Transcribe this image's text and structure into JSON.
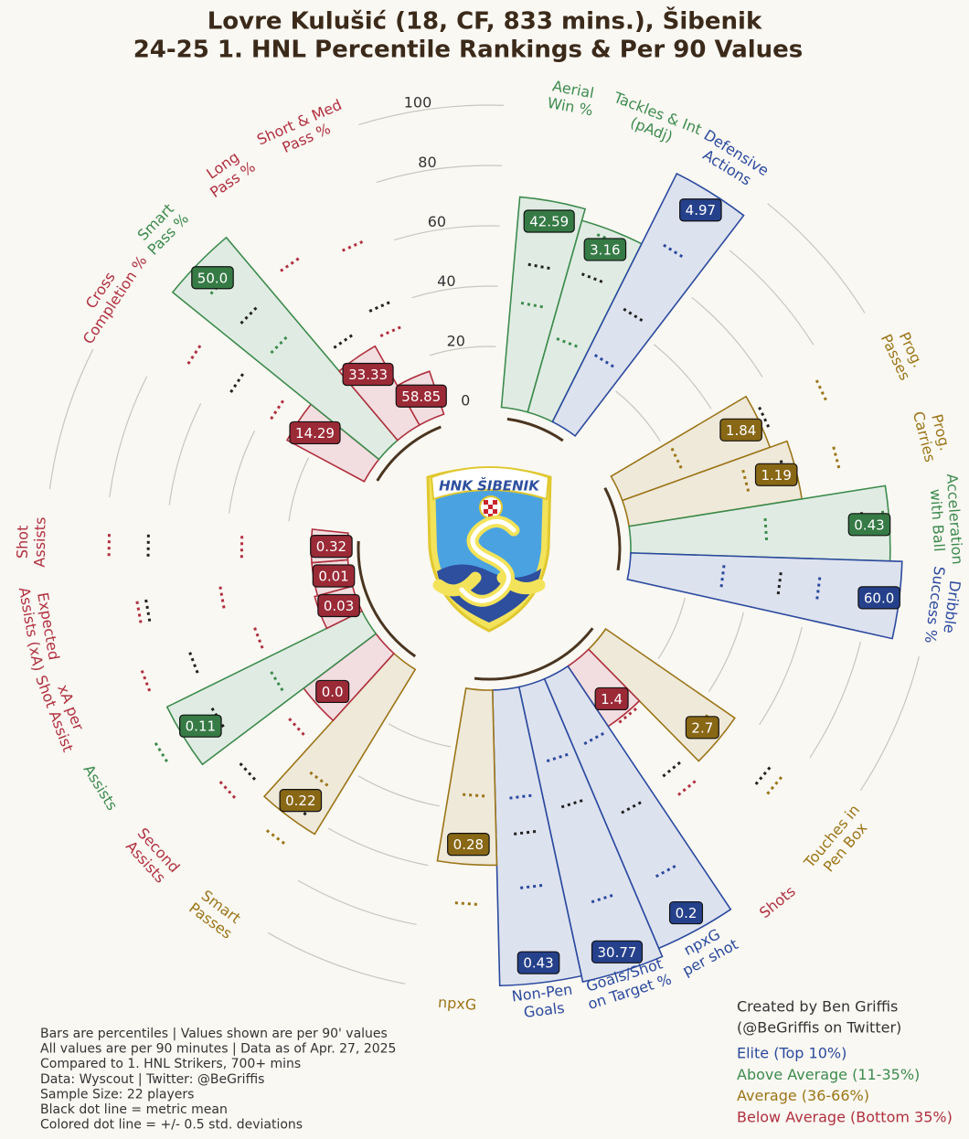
{
  "chart_data": {
    "type": "pizza",
    "title": [
      "Lovre Kulušić (18, CF, 833 mins.), Šibenik",
      "24-25 1. HNL Percentile Rankings & Per 90 Values"
    ],
    "rlim": [
      0,
      100
    ],
    "rticks": [
      0,
      20,
      40,
      60,
      80,
      100
    ],
    "logo_text": "HNK ŠIBENIK",
    "groups": [
      {
        "metrics": [
          {
            "label": [
              "Aerial",
              "Win %"
            ],
            "percentile": 70,
            "value": 42.59,
            "color": "#3d8b4e",
            "mean": 48,
            "band": [
              35,
              63
            ]
          },
          {
            "label": [
              "Tackles & Int",
              "(pAdj)"
            ],
            "percentile": 66,
            "value": 3.16,
            "color": "#3d8b4e",
            "mean": 49,
            "band": [
              26,
              63
            ]
          },
          {
            "label": [
              "Defensive",
              "Actions"
            ],
            "percentile": 92,
            "value": 4.97,
            "color": "#2b4a9e",
            "mean": 44,
            "band": [
              26,
              69
            ]
          }
        ]
      },
      {
        "metrics": [
          {
            "label": [
              "Prog.",
              "Passes"
            ],
            "percentile": 52,
            "value": 1.84,
            "color": "#9b7518",
            "mean": 54,
            "band": [
              22,
              75
            ]
          },
          {
            "label": [
              "Prog.",
              "Carries"
            ],
            "percentile": 58,
            "value": 1.19,
            "color": "#9b7518",
            "mean": 54,
            "band": [
              41,
              72
            ]
          },
          {
            "label": [
              "Acceleration",
              "with Ball"
            ],
            "percentile": 86,
            "value": 0.43,
            "color": "#3d8b4e",
            "mean": 77,
            "band": [
              45,
              84
            ]
          },
          {
            "label": [
              "Dribble",
              "Success %"
            ],
            "percentile": 90,
            "value": 60,
            "value_label": "60.0",
            "color": "#2b4a9e",
            "mean": 50,
            "band": [
              31,
              63
            ]
          }
        ]
      },
      {
        "metrics": [
          {
            "label": [
              "Touches in",
              "Pen Box"
            ],
            "percentile": 52,
            "value": 2.7,
            "color": "#9b7518",
            "mean": 71,
            "band": [
              44,
              76
            ]
          },
          {
            "label": [
              "Shots"
            ],
            "percentile": 24,
            "value": 1.4,
            "color": "#b0303f",
            "mean": 48,
            "band": [
              25,
              56
            ]
          },
          {
            "label": [
              "npxG",
              "per shot"
            ],
            "percentile": 97,
            "value": 0.2,
            "color": "#2b4a9e",
            "mean": 51,
            "band": [
              25,
              75
            ]
          },
          {
            "label": [
              "Goals/Shot",
              "on Target %"
            ],
            "percentile": 100,
            "value": 30.77,
            "color": "#2b4a9e",
            "mean": 42,
            "band": [
              26,
              75
            ]
          },
          {
            "label": [
              "Non-Pen",
              "Goals"
            ],
            "percentile": 98,
            "value": 0.43,
            "color": "#2b4a9e",
            "mean": 48,
            "band": [
              36,
              66
            ]
          },
          {
            "label": [
              "npxG"
            ],
            "percentile": 58,
            "value": 0.28,
            "color": "#9b7518",
            "mean": 49,
            "band": [
              35,
              71
            ]
          }
        ]
      },
      {
        "metrics": [
          {
            "label": [
              "Smart",
              "Passes"
            ],
            "percentile": 64,
            "value": 0.22,
            "color": "#9b7518",
            "mean": 60,
            "band": [
              48,
              72
            ]
          },
          {
            "label": [
              "Second",
              "Assists"
            ],
            "percentile": 30,
            "value": 0,
            "value_label": "0.0",
            "color": "#b0303f",
            "mean": 62,
            "band": [
              40,
              71
            ]
          },
          {
            "label": [
              "Assists"
            ],
            "percentile": 72,
            "value": 0.11,
            "color": "#3d8b4e",
            "mean": 59,
            "band": [
              36,
              81
            ]
          },
          {
            "label": [
              "xA per",
              "Shot Assist"
            ],
            "percentile": 13,
            "value": 0.03,
            "color": "#b0303f",
            "mean": 58,
            "band": [
              35,
              75
            ]
          },
          {
            "label": [
              "Expected",
              "Assists (xA)"
            ],
            "percentile": 12,
            "value": 0.01,
            "color": "#b0303f",
            "mean": 68,
            "band": [
              43,
              71
            ]
          },
          {
            "label": [
              "Shot",
              "Assists"
            ],
            "percentile": 12,
            "value": 0.32,
            "color": "#b0303f",
            "mean": 66,
            "band": [
              35,
              79
            ]
          }
        ]
      },
      {
        "metrics": [
          {
            "label": [
              "Cross",
              "Completion %"
            ],
            "percentile": 29,
            "value": 14.29,
            "color": "#b0303f",
            "mean": 53,
            "band": [
              37,
              70
            ]
          },
          {
            "label": [
              "Smart",
              "Pass %"
            ],
            "percentile": 88,
            "value": 50,
            "value_label": "50.0",
            "color": "#3d8b4e",
            "mean": 64,
            "band": [
              50,
              78
            ]
          },
          {
            "label": [
              "Long",
              "Pass %"
            ],
            "percentile": 30,
            "value": 33.33,
            "color": "#b0303f",
            "mean": 37,
            "band": [
              25,
              68
            ]
          },
          {
            "label": [
              "Short & Med",
              "Pass %"
            ],
            "percentile": 15,
            "value": 58.85,
            "color": "#b0303f",
            "mean": 41,
            "band": [
              32,
              63
            ]
          }
        ]
      }
    ],
    "notes": [
      "Bars are percentiles | Values shown are per 90' values",
      "All values are per 90 minutes | Data as of Apr. 27, 2025",
      "Compared to 1. HNL Strikers, 700+ mins",
      "Data: Wyscout | Twitter: @BeGriffis",
      "Sample Size: 22 players",
      "Black dot line = metric mean",
      "Colored dot line = +/- 0.5 std. deviations"
    ],
    "credits": [
      "Created by Ben Griffis",
      "(@BeGriffis on Twitter)"
    ],
    "legend": [
      {
        "name": "Elite (Top 10%)",
        "color": "#2b4a9e"
      },
      {
        "name": "Above Average (11-35%)",
        "color": "#3d8b4e"
      },
      {
        "name": "Average (36-66%)",
        "color": "#9b7518"
      },
      {
        "name": "Below Average (Bottom 35%)",
        "color": "#b0303f"
      }
    ]
  }
}
